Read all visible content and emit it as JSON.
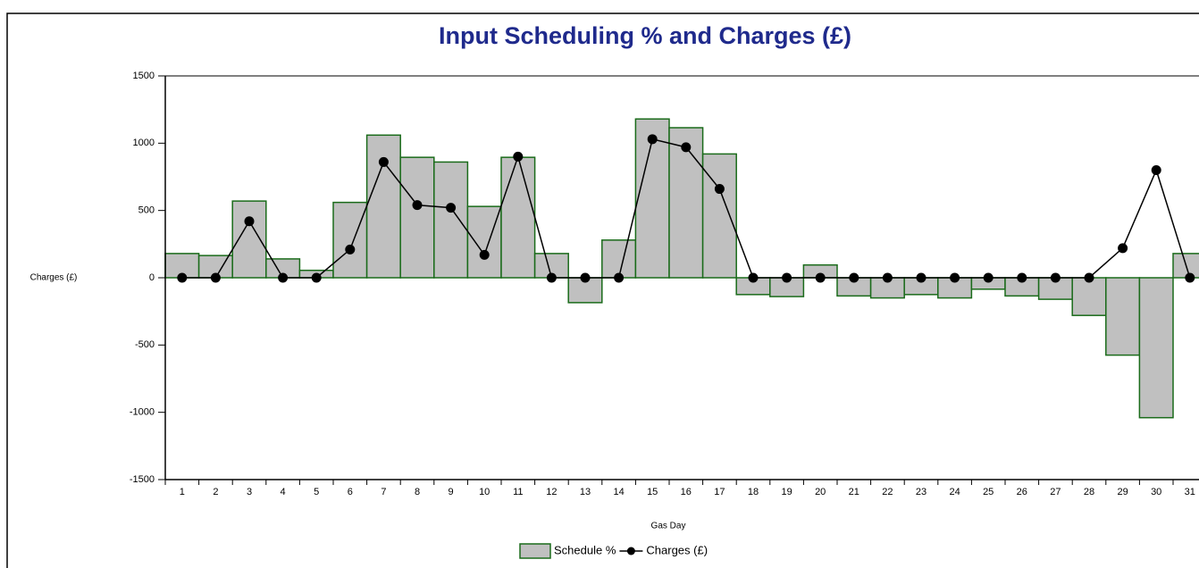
{
  "chart_data": {
    "type": "bar",
    "title": "Input Scheduling % and Charges (£)",
    "x_label": "Gas Day",
    "y_label": "Charges (£)",
    "categories": [
      "1",
      "2",
      "3",
      "4",
      "5",
      "6",
      "7",
      "8",
      "9",
      "10",
      "11",
      "12",
      "13",
      "14",
      "15",
      "16",
      "17",
      "18",
      "19",
      "20",
      "21",
      "22",
      "23",
      "24",
      "25",
      "26",
      "27",
      "28",
      "29",
      "30",
      "31"
    ],
    "series": [
      {
        "name": "Schedule %",
        "type": "bar",
        "color": "#c0c0c0",
        "edge_color": "#1a6b1a",
        "values": [
          180,
          165,
          570,
          140,
          55,
          560,
          1060,
          895,
          860,
          530,
          895,
          180,
          -185,
          280,
          1180,
          1115,
          920,
          -125,
          -140,
          95,
          -135,
          -150,
          -125,
          -150,
          -85,
          -135,
          -160,
          -280,
          -575,
          -1040,
          180
        ]
      },
      {
        "name": "Charges (£)",
        "type": "line",
        "color": "#000000",
        "values": [
          0,
          0,
          420,
          0,
          0,
          210,
          860,
          540,
          520,
          170,
          900,
          0,
          0,
          0,
          1030,
          970,
          660,
          0,
          0,
          0,
          0,
          0,
          0,
          0,
          0,
          0,
          0,
          0,
          220,
          800,
          0
        ]
      }
    ],
    "ylim": [
      -1500,
      1500
    ],
    "yticks": [
      -1500,
      -1000,
      -500,
      0,
      500,
      1000,
      1500
    ]
  }
}
